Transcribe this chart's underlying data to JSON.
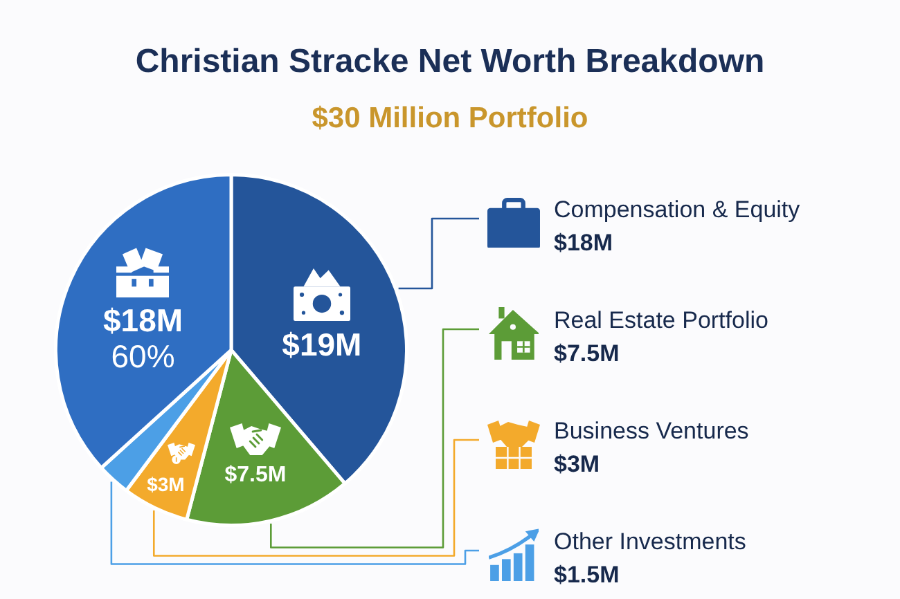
{
  "chart_data": {
    "type": "pie",
    "title": "Christian Stracke Net Worth Breakdown",
    "subtitle": "$30 Million Portfolio",
    "categories": [
      "Compensation & Equity",
      "Real Estate Portfolio",
      "Business Ventures",
      "Other Investments",
      null
    ],
    "values": [
      19,
      7.5,
      3,
      1.5,
      18
    ],
    "colors": [
      "#24559a",
      "#5c9c37",
      "#f3aa2c",
      "#4c9fe6",
      "#2f6ec2"
    ],
    "value_labels": [
      "$19M",
      "$7.5M",
      "$3M",
      null,
      "$18M"
    ],
    "annotations": [
      "$18M",
      "$7.5M",
      "$3M",
      "$1.5M",
      "60%"
    ],
    "legend": "right"
  }
}
